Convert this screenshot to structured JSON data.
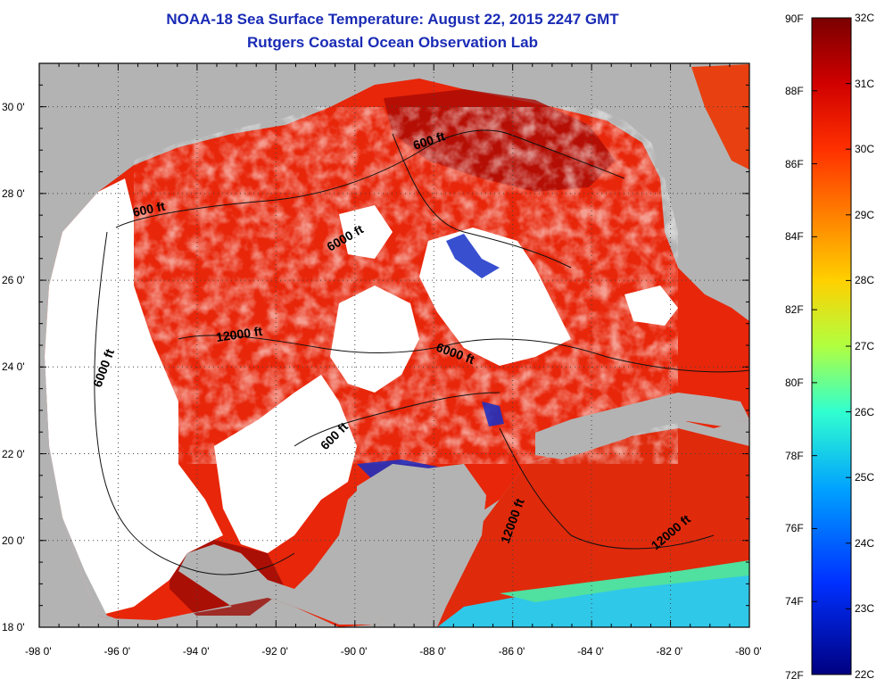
{
  "title": "NOAA-18 Sea Surface Temperature:  August 22, 2015 2247 GMT",
  "subtitle": "Rutgers Coastal Ocean Observation Lab",
  "map": {
    "lon_range": [
      -98,
      -80
    ],
    "lat_range": [
      18,
      31
    ],
    "x_ticks": [
      "-98 0'",
      "-96 0'",
      "-94 0'",
      "-92 0'",
      "-90 0'",
      "-88 0'",
      "-86 0'",
      "-84 0'",
      "-82 0'",
      "-80 0'"
    ],
    "y_ticks": [
      "30 0'",
      "28 0'",
      "26 0'",
      "24 0'",
      "22 0'",
      "20 0'",
      "18 0'"
    ],
    "land_color": "#b3b3b3",
    "cloud_color": "#ffffff",
    "contour_labels": [
      "600 ft",
      "600 ft",
      "6000 ft",
      "12000 ft",
      "6000 ft",
      "6000 ft",
      "600 ft",
      "12000 ft",
      "12000 ft"
    ]
  },
  "colorbar": {
    "fahrenheit": [
      "90F",
      "88F",
      "86F",
      "84F",
      "82F",
      "80F",
      "78F",
      "76F",
      "74F",
      "72F"
    ],
    "celsius": [
      "32C",
      "31C",
      "30C",
      "29C",
      "28C",
      "27C",
      "26C",
      "25C",
      "24C",
      "23C",
      "22C"
    ],
    "colors": [
      "#7a0000",
      "#d00000",
      "#ff3000",
      "#ff8000",
      "#ffd000",
      "#b0ff40",
      "#30ffd0",
      "#00a0ff",
      "#0030ff",
      "#000080"
    ]
  }
}
